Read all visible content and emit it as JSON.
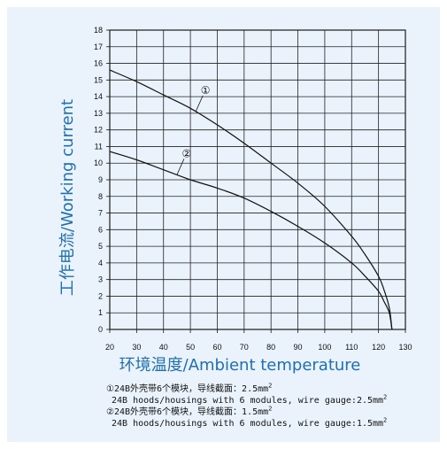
{
  "chart_data": {
    "type": "line",
    "xlabel": "环境温度/Ambient temperature",
    "ylabel": "工作电流/Working current",
    "xlim": [
      20,
      130
    ],
    "ylim": [
      0,
      18
    ],
    "xticks": [
      20,
      30,
      40,
      50,
      60,
      70,
      80,
      90,
      100,
      110,
      120,
      130
    ],
    "yticks": [
      0,
      1,
      2,
      3,
      4,
      5,
      6,
      7,
      8,
      9,
      10,
      11,
      12,
      13,
      14,
      15,
      16,
      17,
      18
    ],
    "grid": true,
    "series": [
      {
        "name": "①",
        "x": [
          20,
          30,
          40,
          50,
          60,
          70,
          80,
          90,
          100,
          110,
          115,
          120,
          122,
          124,
          125
        ],
        "y": [
          15.6,
          14.9,
          14.1,
          13.3,
          12.3,
          11.2,
          10.0,
          8.8,
          7.4,
          5.6,
          4.5,
          3.2,
          2.4,
          1.3,
          0
        ]
      },
      {
        "name": "②",
        "x": [
          20,
          30,
          40,
          50,
          60,
          70,
          80,
          90,
          100,
          110,
          115,
          120,
          122,
          124,
          125
        ],
        "y": [
          10.7,
          10.2,
          9.6,
          9.0,
          8.5,
          7.9,
          7.1,
          6.2,
          5.2,
          4.0,
          3.2,
          2.3,
          1.7,
          1.0,
          0
        ]
      }
    ],
    "annotations": [
      {
        "label": "①",
        "series": 0,
        "at_x": 52
      },
      {
        "label": "②",
        "series": 1,
        "at_x": 45
      }
    ]
  },
  "notes": [
    {
      "text": "①24B外壳带6个模块，导线截面：2.5mm",
      "sup": "2"
    },
    {
      "text": "24B hoods/housings with 6 modules, wire gauge:2.5mm",
      "sup": "2"
    },
    {
      "text": "②24B外壳带6个模块，导线截面：1.5mm",
      "sup": "2"
    },
    {
      "text": "24B hoods/housings with 6 modules, wire gauge:1.5mm",
      "sup": "2"
    }
  ],
  "colors": {
    "background": "#eaf3fb",
    "label_blue": "#1f6fb2",
    "line": "#111111"
  }
}
